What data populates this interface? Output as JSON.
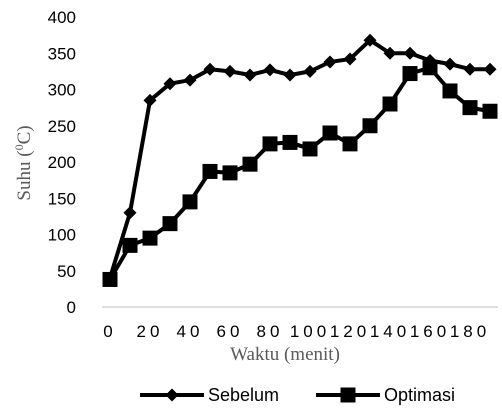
{
  "chart_data": {
    "type": "line",
    "title": "",
    "xlabel": "Waktu (menit)",
    "ylabel": {
      "prefix": "Suhu (",
      "sup": "0",
      "suffix": "C)"
    },
    "ylim": [
      0,
      400
    ],
    "yticks": [
      0,
      50,
      100,
      150,
      200,
      250,
      300,
      350,
      400
    ],
    "xlim": [
      0,
      190
    ],
    "xticks": [
      0,
      20,
      40,
      60,
      80,
      100,
      120,
      140,
      160,
      180
    ],
    "legend_position": "bottom",
    "grid": false,
    "series": [
      {
        "name": "Sebelum",
        "marker": "diamond",
        "color": "#000000",
        "x": [
          0,
          10,
          20,
          30,
          40,
          50,
          60,
          70,
          80,
          90,
          100,
          110,
          120,
          130,
          140,
          150,
          160,
          170,
          180,
          190
        ],
        "y": [
          40,
          130,
          285,
          308,
          313,
          328,
          325,
          320,
          327,
          320,
          325,
          338,
          342,
          368,
          350,
          350,
          340,
          335,
          328,
          328
        ]
      },
      {
        "name": "Optimasi",
        "marker": "square",
        "color": "#000000",
        "x": [
          0,
          10,
          20,
          30,
          40,
          50,
          60,
          70,
          80,
          90,
          100,
          110,
          120,
          130,
          140,
          150,
          160,
          170,
          180,
          190
        ],
        "y": [
          38,
          85,
          95,
          115,
          145,
          187,
          185,
          197,
          225,
          227,
          218,
          240,
          225,
          250,
          280,
          322,
          330,
          298,
          275,
          270
        ]
      }
    ]
  }
}
